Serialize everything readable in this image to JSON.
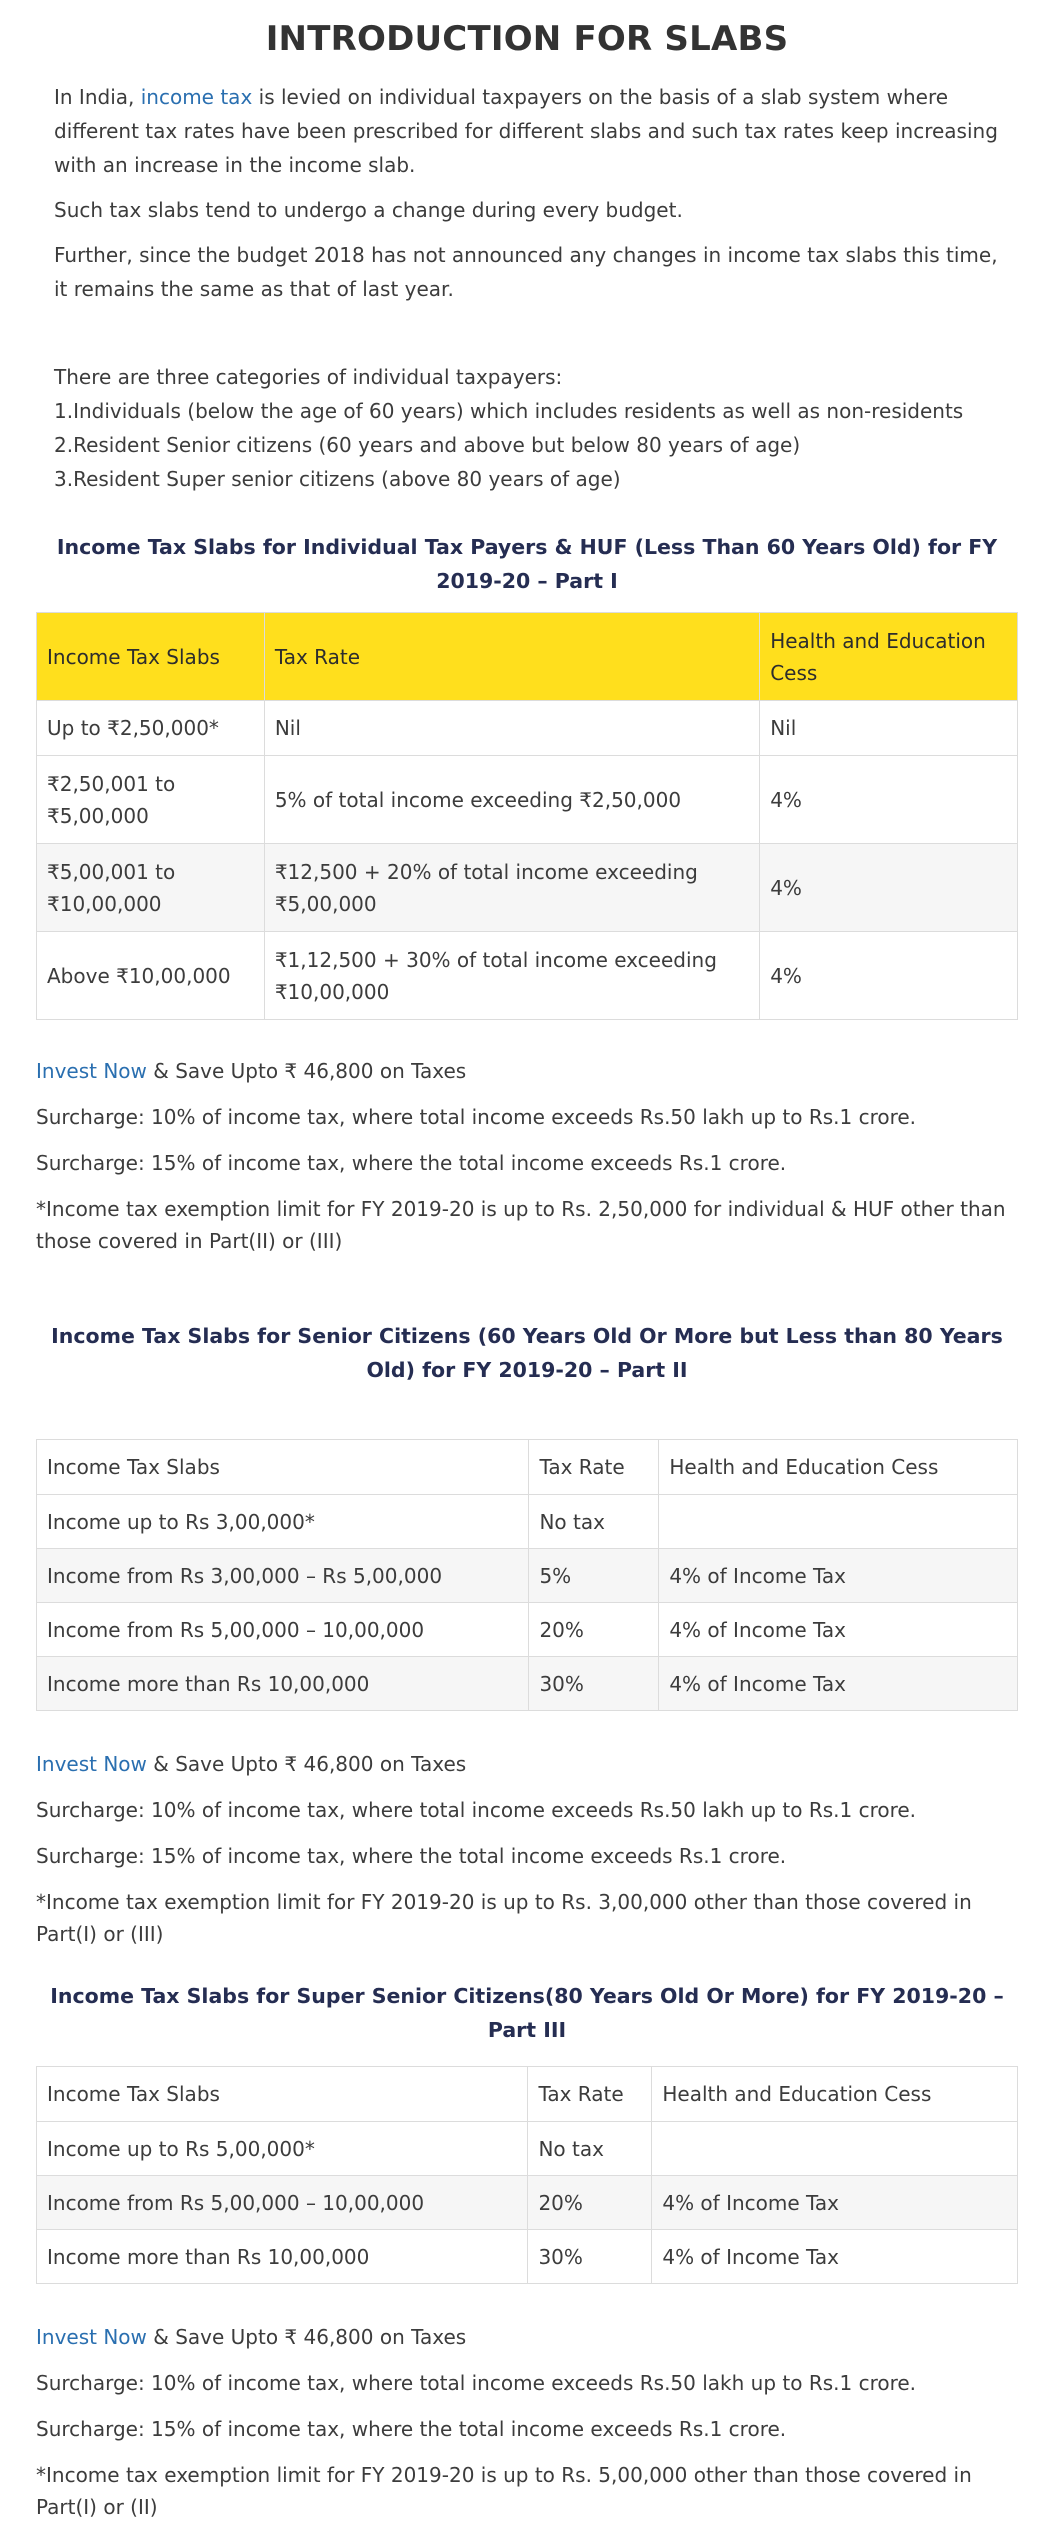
{
  "title": "INTRODUCTION FOR SLABS",
  "intro": {
    "p1_before": "In India, ",
    "p1_link": "income tax",
    "p1_after": " is levied on individual taxpayers on the basis of a slab system where different tax rates have been prescribed for different slabs and such tax rates keep increasing with an increase in the income slab.",
    "p2": "Such tax slabs tend to undergo a change during every budget.",
    "p3": "Further, since the budget 2018 has not announced any changes in income tax slabs this time, it remains the same as that of last year.",
    "categories_heading": "There are three categories of individual taxpayers:",
    "categories": [
      "1.Individuals (below the age of 60 years) which includes residents as well as non-residents",
      "2.Resident Senior citizens (60 years and above but below 80 years of age)",
      "3.Resident Super senior citizens (above 80 years of age)"
    ]
  },
  "sections": [
    {
      "title": "Income Tax Slabs for Individual Tax Payers & HUF (Less Than 60 Years Old) for FY 2019-20 – Part I",
      "headers": [
        "Income Tax Slabs",
        "Tax Rate",
        "Health and Education Cess"
      ],
      "rows": [
        [
          "Up to ₹2,50,000*",
          "Nil",
          "Nil"
        ],
        [
          "₹2,50,001 to ₹5,00,000",
          "5% of total income exceeding ₹2,50,000",
          "4%"
        ],
        [
          "₹5,00,001 to ₹10,00,000",
          "₹12,500 + 20% of total income exceeding ₹5,00,000",
          "4%"
        ],
        [
          "Above ₹10,00,000",
          "₹1,12,500 + 30% of total income exceeding ₹10,00,000",
          "4%"
        ]
      ],
      "invest_link": "Invest Now",
      "invest_text": " & Save Upto ₹ 46,800 on Taxes",
      "surcharge1": "Surcharge: 10% of income tax, where total income exceeds Rs.50 lakh up to Rs.1 crore.",
      "surcharge2": "Surcharge: 15% of income tax, where the total income exceeds Rs.1 crore.",
      "exemption": "*Income tax exemption limit for FY 2019-20 is up to Rs. 2,50,000 for individual & HUF other than those covered in Part(II) or (III)"
    },
    {
      "title": "Income Tax Slabs for Senior Citizens (60 Years Old Or More but Less than 80 Years Old) for FY 2019-20 – Part II",
      "headers": [
        "Income Tax Slabs",
        "Tax Rate",
        "Health and Education Cess"
      ],
      "rows": [
        [
          "Income up to Rs 3,00,000*",
          "No tax",
          ""
        ],
        [
          "Income from Rs 3,00,000 – Rs 5,00,000",
          "5%",
          "4% of Income Tax"
        ],
        [
          "Income from Rs 5,00,000 – 10,00,000",
          "20%",
          "4% of Income Tax"
        ],
        [
          "Income more than Rs 10,00,000",
          "30%",
          "4% of Income Tax"
        ]
      ],
      "invest_link": "Invest Now",
      "invest_text": " & Save Upto ₹ 46,800 on Taxes",
      "surcharge1": "Surcharge: 10% of income tax, where total income exceeds Rs.50 lakh up to Rs.1 crore.",
      "surcharge2": "Surcharge: 15% of income tax, where the total income exceeds Rs.1 crore.",
      "exemption": "*Income tax exemption limit for FY 2019-20 is up to Rs. 3,00,000 other than those covered in Part(I) or (III)"
    },
    {
      "title": "Income Tax Slabs for Super Senior Citizens(80 Years Old Or More) for FY 2019-20 – Part III",
      "headers": [
        "Income Tax Slabs",
        "Tax Rate",
        "Health and Education Cess"
      ],
      "rows": [
        [
          "Income up to Rs 5,00,000*",
          "No tax",
          ""
        ],
        [
          "Income from Rs 5,00,000 – 10,00,000",
          "20%",
          "4% of Income Tax"
        ],
        [
          "Income more than Rs 10,00,000",
          "30%",
          "4% of Income Tax"
        ]
      ],
      "invest_link": "Invest Now",
      "invest_text": " & Save Upto ₹ 46,800 on Taxes",
      "surcharge1": "Surcharge: 10% of income tax, where total income exceeds Rs.50 lakh up to Rs.1 crore.",
      "surcharge2": "Surcharge: 15% of income tax, where the total income exceeds Rs.1 crore.",
      "exemption": "*Income tax exemption limit for FY 2019-20 is up to Rs. 5,00,000 other than those covered in Part(I) or (II)"
    }
  ],
  "colors": {
    "header_yellow": "#ffdf1d",
    "link_blue": "#2a6fb0",
    "section_title_navy": "#252d52"
  }
}
